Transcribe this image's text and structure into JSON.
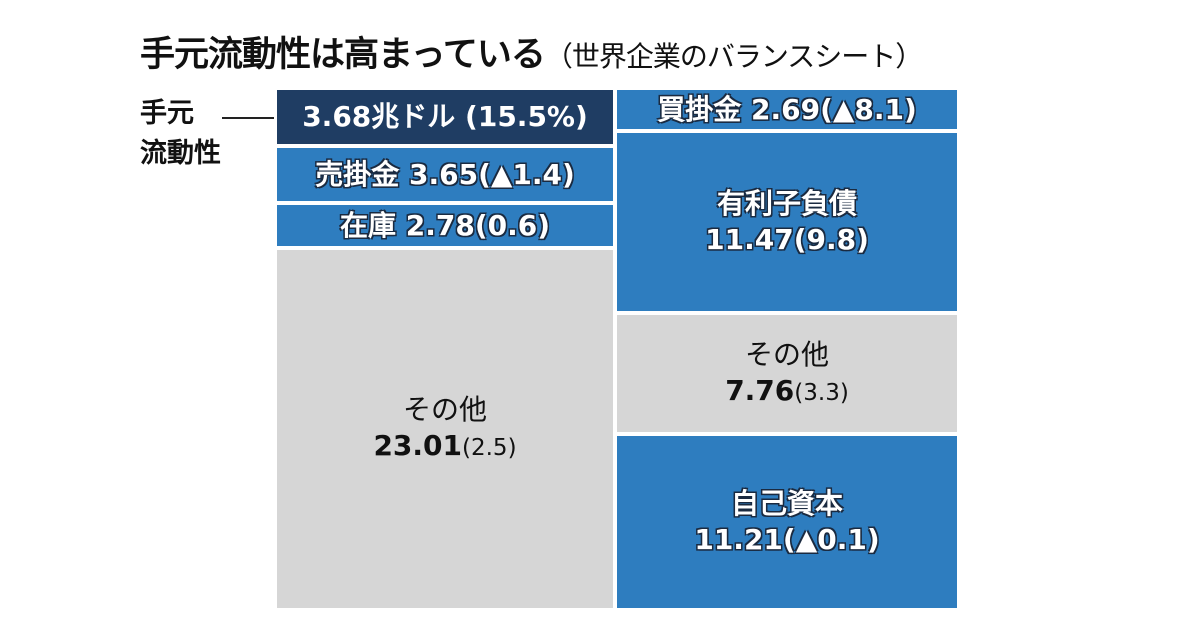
{
  "title": "手元流動性は高まっている",
  "subtitle": "（世界企業のバランスシート）",
  "side_label_line1": "手元",
  "side_label_line2": "流動性",
  "colors": {
    "navy": "#1f3d63",
    "blue": "#2e7dbf",
    "gray": "#d6d6d6"
  },
  "chart_data": {
    "type": "treemap",
    "assets": [
      {
        "name": "手元流動性",
        "value": 3.68,
        "display": "3.68兆ドル",
        "change": "(15.5%)"
      },
      {
        "name": "売掛金",
        "value": 3.65,
        "display": "3.65",
        "change": "(▲1.4)"
      },
      {
        "name": "在庫",
        "value": 2.78,
        "display": "2.78",
        "change": "(0.6)"
      },
      {
        "name": "その他",
        "value": 23.01,
        "display": "23.01",
        "change": "(2.5)"
      }
    ],
    "liabilities_equity": [
      {
        "name": "買掛金",
        "value": 2.69,
        "display": "2.69",
        "change": "(▲8.1)"
      },
      {
        "name": "有利子負債",
        "value": 11.47,
        "display": "11.47",
        "change": "(9.8)"
      },
      {
        "name": "その他",
        "value": 7.76,
        "display": "7.76",
        "change": "(3.3)"
      },
      {
        "name": "自己資本",
        "value": 11.21,
        "display": "11.21",
        "change": "(▲0.1)"
      }
    ]
  }
}
